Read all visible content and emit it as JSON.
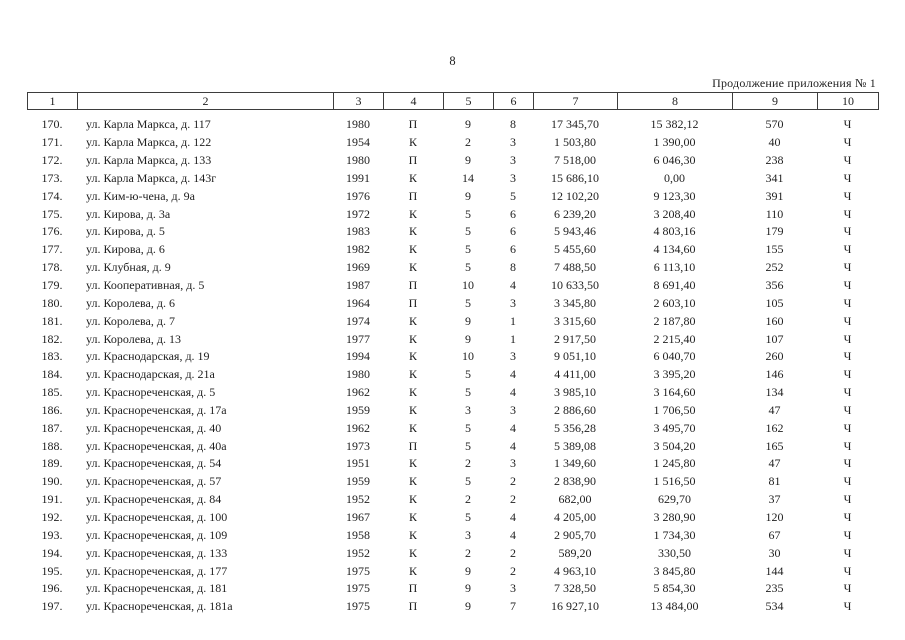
{
  "page": {
    "number": "8",
    "continuation": "Продолжение приложения № 1"
  },
  "table": {
    "headers": [
      "1",
      "2",
      "3",
      "4",
      "5",
      "6",
      "7",
      "8",
      "9",
      "10"
    ],
    "rows": [
      [
        "170.",
        "ул. Карла Маркса, д. 117",
        "1980",
        "П",
        "9",
        "8",
        "17 345,70",
        "15 382,12",
        "570",
        "Ч"
      ],
      [
        "171.",
        "ул. Карла Маркса, д. 122",
        "1954",
        "К",
        "2",
        "3",
        "1 503,80",
        "1 390,00",
        "40",
        "Ч"
      ],
      [
        "172.",
        "ул. Карла Маркса, д. 133",
        "1980",
        "П",
        "9",
        "3",
        "7 518,00",
        "6 046,30",
        "238",
        "Ч"
      ],
      [
        "173.",
        "ул. Карла Маркса, д. 143г",
        "1991",
        "К",
        "14",
        "3",
        "15 686,10",
        "0,00",
        "341",
        "Ч"
      ],
      [
        "174.",
        "ул. Ким-ю-чена, д. 9а",
        "1976",
        "П",
        "9",
        "5",
        "12 102,20",
        "9 123,30",
        "391",
        "Ч"
      ],
      [
        "175.",
        "ул. Кирова, д. 3а",
        "1972",
        "К",
        "5",
        "6",
        "6 239,20",
        "3 208,40",
        "110",
        "Ч"
      ],
      [
        "176.",
        "ул. Кирова, д. 5",
        "1983",
        "К",
        "5",
        "6",
        "5 943,46",
        "4 803,16",
        "179",
        "Ч"
      ],
      [
        "177.",
        "ул. Кирова, д. 6",
        "1982",
        "К",
        "5",
        "6",
        "5 455,60",
        "4 134,60",
        "155",
        "Ч"
      ],
      [
        "178.",
        "ул. Клубная, д. 9",
        "1969",
        "К",
        "5",
        "8",
        "7 488,50",
        "6 113,10",
        "252",
        "Ч"
      ],
      [
        "179.",
        "ул. Кооперативная, д. 5",
        "1987",
        "П",
        "10",
        "4",
        "10 633,50",
        "8 691,40",
        "356",
        "Ч"
      ],
      [
        "180.",
        "ул. Королева, д. 6",
        "1964",
        "П",
        "5",
        "3",
        "3 345,80",
        "2 603,10",
        "105",
        "Ч"
      ],
      [
        "181.",
        "ул. Королева, д. 7",
        "1974",
        "К",
        "9",
        "1",
        "3 315,60",
        "2 187,80",
        "160",
        "Ч"
      ],
      [
        "182.",
        "ул. Королева, д. 13",
        "1977",
        "К",
        "9",
        "1",
        "2 917,50",
        "2 215,40",
        "107",
        "Ч"
      ],
      [
        "183.",
        "ул. Краснодарская, д. 19",
        "1994",
        "К",
        "10",
        "3",
        "9 051,10",
        "6 040,70",
        "260",
        "Ч"
      ],
      [
        "184.",
        "ул. Краснодарская, д. 21а",
        "1980",
        "К",
        "5",
        "4",
        "4 411,00",
        "3 395,20",
        "146",
        "Ч"
      ],
      [
        "185.",
        "ул. Краснореченская, д. 5",
        "1962",
        "К",
        "5",
        "4",
        "3 985,10",
        "3 164,60",
        "134",
        "Ч"
      ],
      [
        "186.",
        "ул. Краснореченская, д. 17а",
        "1959",
        "К",
        "3",
        "3",
        "2 886,60",
        "1 706,50",
        "47",
        "Ч"
      ],
      [
        "187.",
        "ул. Краснореченская, д. 40",
        "1962",
        "К",
        "5",
        "4",
        "5 356,28",
        "3 495,70",
        "162",
        "Ч"
      ],
      [
        "188.",
        "ул. Краснореченская, д. 40а",
        "1973",
        "П",
        "5",
        "4",
        "5 389,08",
        "3 504,20",
        "165",
        "Ч"
      ],
      [
        "189.",
        "ул. Краснореченская, д. 54",
        "1951",
        "К",
        "2",
        "3",
        "1 349,60",
        "1 245,80",
        "47",
        "Ч"
      ],
      [
        "190.",
        "ул. Краснореченская, д. 57",
        "1959",
        "К",
        "5",
        "2",
        "2 838,90",
        "1 516,50",
        "81",
        "Ч"
      ],
      [
        "191.",
        "ул. Краснореченская, д. 84",
        "1952",
        "К",
        "2",
        "2",
        "682,00",
        "629,70",
        "37",
        "Ч"
      ],
      [
        "192.",
        "ул. Краснореченская, д. 100",
        "1967",
        "К",
        "5",
        "4",
        "4 205,00",
        "3 280,90",
        "120",
        "Ч"
      ],
      [
        "193.",
        "ул. Краснореченская, д. 109",
        "1958",
        "К",
        "3",
        "4",
        "2 905,70",
        "1 734,30",
        "67",
        "Ч"
      ],
      [
        "194.",
        "ул. Краснореченская, д. 133",
        "1952",
        "К",
        "2",
        "2",
        "589,20",
        "330,50",
        "30",
        "Ч"
      ],
      [
        "195.",
        "ул. Краснореченская, д. 177",
        "1975",
        "К",
        "9",
        "2",
        "4 963,10",
        "3 845,80",
        "144",
        "Ч"
      ],
      [
        "196.",
        "ул. Краснореченская, д. 181",
        "1975",
        "П",
        "9",
        "3",
        "7 328,50",
        "5 854,30",
        "235",
        "Ч"
      ],
      [
        "197.",
        "ул. Краснореченская, д. 181а",
        "1975",
        "П",
        "9",
        "7",
        "16 927,10",
        "13 484,00",
        "534",
        "Ч"
      ]
    ]
  }
}
